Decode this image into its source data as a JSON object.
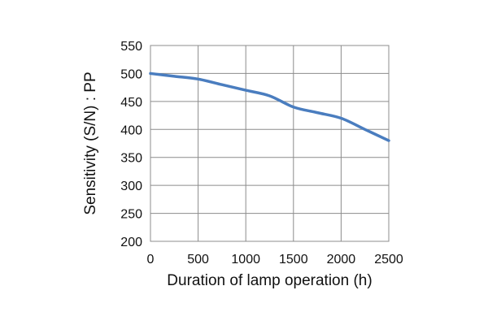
{
  "chart_data": {
    "type": "line",
    "xlabel": "Duration of lamp operation (h)",
    "ylabel": "Sensitivity (S/N) : PP",
    "xlim": [
      0,
      2500
    ],
    "ylim": [
      200,
      550
    ],
    "xticks": [
      0,
      500,
      1000,
      1500,
      2000,
      2500
    ],
    "yticks": [
      200,
      250,
      300,
      350,
      400,
      450,
      500,
      550
    ],
    "grid": true,
    "legend": "none",
    "series": [
      {
        "color": "#4a7dbf",
        "x": [
          0,
          250,
          500,
          750,
          1000,
          1250,
          1500,
          1750,
          2000,
          2250,
          2500
        ],
        "y": [
          500,
          495,
          490,
          480,
          470,
          460,
          440,
          430,
          420,
          400,
          380
        ]
      }
    ]
  }
}
